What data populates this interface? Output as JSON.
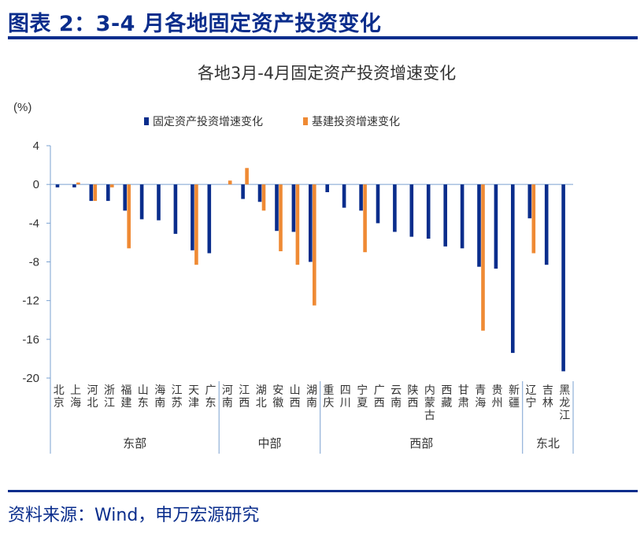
{
  "figure": {
    "title": "图表 2：3-4 月各地固定资产投资变化",
    "source": "资料来源：Wind，申万宏源研究"
  },
  "colors": {
    "fixed": "#0a2d8c",
    "infra": "#ef8a34",
    "axis": "#7aa0d0",
    "brand": "#0a2d8c"
  },
  "chart_data": {
    "type": "bar",
    "title": "各地3月-4月固定资产投资增速变化",
    "unit_label": "(%)",
    "ylim": [
      -20,
      4
    ],
    "yticks": [
      "4",
      "0",
      "-4",
      "-8",
      "-12",
      "-16",
      "-20"
    ],
    "legend_position": "top-center",
    "grid": false,
    "categories": [
      "北京",
      "上海",
      "河北",
      "浙江",
      "福建",
      "山东",
      "海南",
      "江苏",
      "天津",
      "广东",
      "河南",
      "江西",
      "湖北",
      "安徽",
      "山西",
      "湖南",
      "重庆",
      "四川",
      "宁夏",
      "广西",
      "云南",
      "陕西",
      "内蒙古",
      "西藏",
      "甘肃",
      "青海",
      "贵州",
      "新疆",
      "辽宁",
      "吉林",
      "黑龙江"
    ],
    "series": [
      {
        "name": "固定资产投资增速变化",
        "values": [
          -0.3,
          -0.3,
          -1.7,
          -1.7,
          -2.7,
          -3.6,
          -3.7,
          -5.1,
          -6.8,
          -7.1,
          0,
          -1.5,
          -1.8,
          -4.8,
          -4.9,
          -8.0,
          -0.8,
          -2.4,
          -2.7,
          -4.0,
          -4.9,
          -5.4,
          -5.6,
          -6.4,
          -6.6,
          -8.5,
          -8.7,
          -17.4,
          -3.5,
          -8.3,
          -19.3
        ]
      },
      {
        "name": "基建投资增速变化",
        "values": [
          0,
          0.2,
          -1.7,
          -0.3,
          -6.6,
          0,
          0,
          0,
          -8.3,
          0,
          0.4,
          1.7,
          -2.7,
          -6.9,
          -8.3,
          -12.5,
          0,
          0,
          -7.0,
          0,
          0,
          0,
          0,
          0,
          0,
          -15.1,
          0,
          0,
          -7.1,
          0,
          0
        ]
      }
    ],
    "groups": [
      {
        "label": "东部",
        "start": 0,
        "end": 9
      },
      {
        "label": "中部",
        "start": 10,
        "end": 15
      },
      {
        "label": "西部",
        "start": 16,
        "end": 27
      },
      {
        "label": "东北",
        "start": 28,
        "end": 30
      }
    ]
  }
}
